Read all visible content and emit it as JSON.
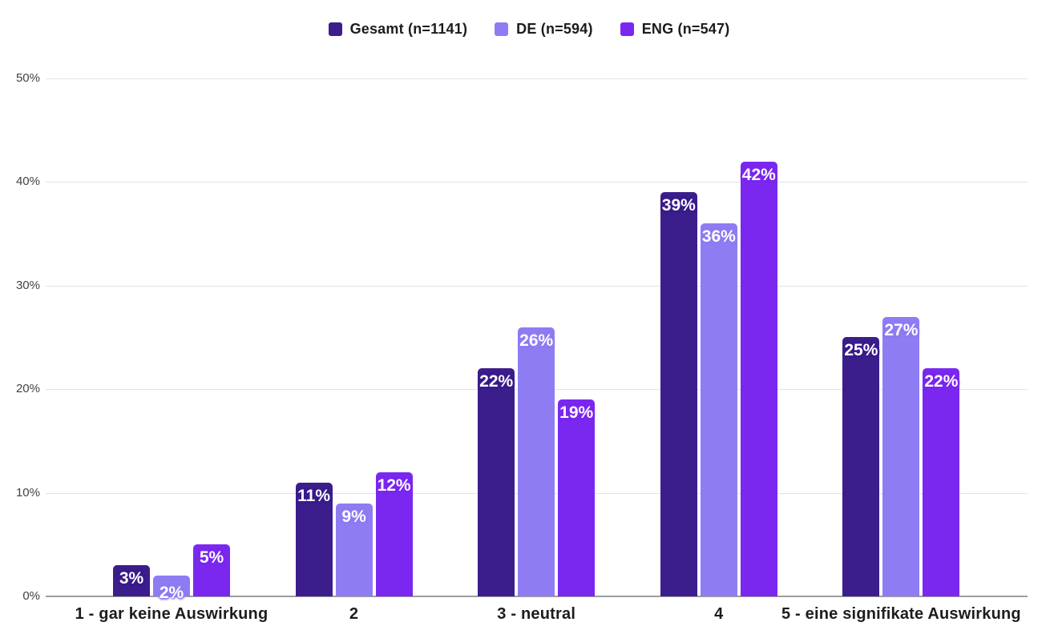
{
  "chart_data": {
    "type": "bar",
    "title": "",
    "xlabel": "",
    "ylabel": "",
    "categories": [
      "1 - gar keine Auswirkung",
      "2",
      "3 - neutral",
      "4",
      "5 - eine signifikate Auswirkung"
    ],
    "series": [
      {
        "name": "Gesamt (n=1141)",
        "color": "#3b1d8c",
        "values": [
          3,
          11,
          22,
          39,
          25
        ]
      },
      {
        "name": "DE (n=594)",
        "color": "#8e7cf3",
        "values": [
          2,
          9,
          26,
          36,
          27
        ]
      },
      {
        "name": "ENG (n=547)",
        "color": "#7a28f0",
        "values": [
          5,
          12,
          19,
          42,
          22
        ]
      }
    ],
    "value_labels": [
      [
        "3%",
        "11%",
        "22%",
        "39%",
        "25%"
      ],
      [
        "2%",
        "9%",
        "26%",
        "36%",
        "27%"
      ],
      [
        "5%",
        "12%",
        "19%",
        "42%",
        "22%"
      ]
    ],
    "ylim": [
      0,
      50
    ],
    "yticks": [
      "0%",
      "10%",
      "20%",
      "30%",
      "40%",
      "50%"
    ],
    "grid": true,
    "legend_position": "top",
    "colors": {
      "background": "#ffffff",
      "gridline": "#e3e3e3",
      "axis": "#9e9e9e",
      "tick_text": "#424242",
      "category_text": "#1d1d1d",
      "legend_text": "#1c1c1c",
      "value_text": "#ffffff"
    }
  }
}
